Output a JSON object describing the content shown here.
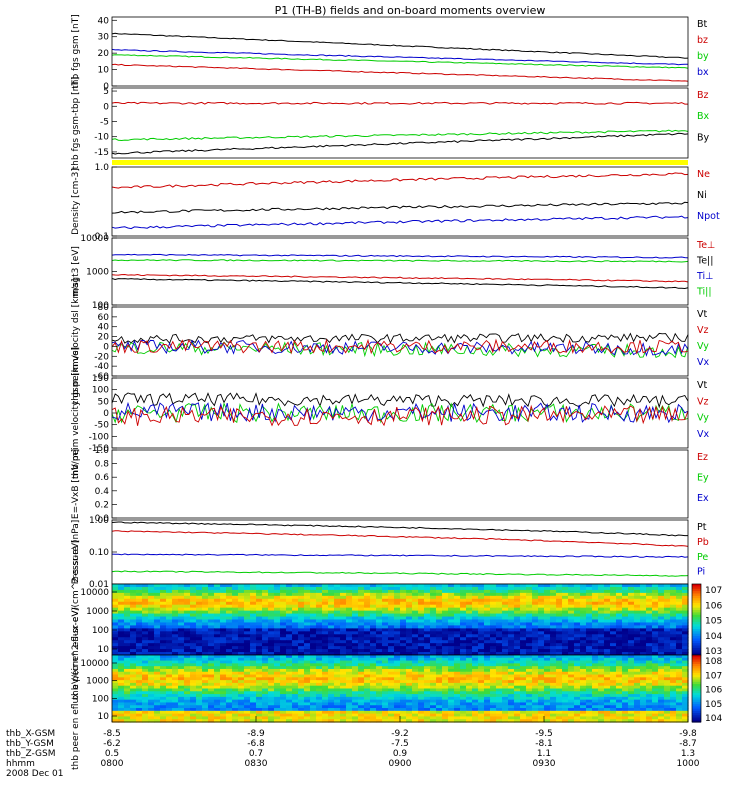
{
  "title": "P1 (TH-B) fields and on-board moments overview",
  "footer": {
    "rows": [
      {
        "label": "thb_X-GSM",
        "values": [
          "-8.5",
          "-8.9",
          "-9.2",
          "-9.5",
          "-9.8"
        ]
      },
      {
        "label": "thb_Y-GSM",
        "values": [
          "-6.2",
          "-6.8",
          "-7.5",
          "-8.1",
          "-8.7"
        ]
      },
      {
        "label": "thb_Z-GSM",
        "values": [
          "0.5",
          "0.7",
          "0.9",
          "1.1",
          "1.3"
        ]
      },
      {
        "label": "hhmm",
        "values": [
          "0800",
          "0830",
          "0900",
          "0930",
          "1000"
        ]
      }
    ],
    "date": "2008 Dec 01"
  },
  "chart_data": [
    {
      "type": "line",
      "ylabel": "thb fgs gsm [nT]",
      "yticks": [
        "40",
        "30",
        "20",
        "10",
        "0"
      ],
      "ylim": [
        0,
        42
      ],
      "legend": [
        {
          "name": "Bt",
          "color": "#000000"
        },
        {
          "name": "bz",
          "color": "#cc0000"
        },
        {
          "name": "by",
          "color": "#00cc00"
        },
        {
          "name": "bx",
          "color": "#0000cc"
        }
      ],
      "series": [
        {
          "name": "Bt",
          "color": "#000000",
          "start": 32,
          "end": 17
        },
        {
          "name": "by",
          "color": "#00cc00",
          "start": 19,
          "end": 11
        },
        {
          "name": "bx",
          "color": "#0000cc",
          "start": 22,
          "end": 13
        },
        {
          "name": "bz",
          "color": "#cc0000",
          "start": 13,
          "end": 3
        }
      ]
    },
    {
      "type": "line",
      "ylabel": "thb fgs gsm-tbp [nT]",
      "yticks": [
        "5",
        "0",
        "-5",
        "-10",
        "-15"
      ],
      "ylim": [
        -17,
        6
      ],
      "legend": [
        {
          "name": "Bz",
          "color": "#cc0000"
        },
        {
          "name": "Bx",
          "color": "#00cc00"
        },
        {
          "name": "By",
          "color": "#000000"
        }
      ],
      "series": [
        {
          "name": "Bz",
          "color": "#cc0000",
          "start": 1,
          "end": 1
        },
        {
          "name": "Bx",
          "color": "#00cc00",
          "start": -11,
          "end": -8
        },
        {
          "name": "By",
          "color": "#000000",
          "start": -15.5,
          "end": -9
        }
      ]
    },
    {
      "type": "line",
      "ylabel": "Density [cm-3]",
      "scale": "log",
      "yticks": [
        "1.0",
        "0.1"
      ],
      "ylim": [
        0.1,
        1.0
      ],
      "legend": [
        {
          "name": "Ne",
          "color": "#cc0000"
        },
        {
          "name": "Ni",
          "color": "#000000"
        },
        {
          "name": "Npot",
          "color": "#0000cc"
        }
      ],
      "series": [
        {
          "name": "Ne",
          "color": "#cc0000",
          "start": 0.5,
          "end": 0.8
        },
        {
          "name": "Ni",
          "color": "#000000",
          "start": 0.22,
          "end": 0.3
        },
        {
          "name": "Npot",
          "color": "#0000cc",
          "start": 0.13,
          "end": 0.19
        }
      ]
    },
    {
      "type": "line",
      "ylabel": "magt3 [eV]",
      "scale": "log",
      "yticks": [
        "10000",
        "1000",
        "100"
      ],
      "ylim": [
        100,
        10000
      ],
      "legend": [
        {
          "name": "Te⊥",
          "color": "#cc0000"
        },
        {
          "name": "Te||",
          "color": "#000000"
        },
        {
          "name": "Ti⊥",
          "color": "#0000cc"
        },
        {
          "name": "Ti||",
          "color": "#00cc00"
        }
      ],
      "series": [
        {
          "name": "Ti⊥",
          "color": "#0000cc",
          "start": 3200,
          "end": 2600
        },
        {
          "name": "Ti||",
          "color": "#00cc00",
          "start": 2200,
          "end": 2000
        },
        {
          "name": "Te⊥",
          "color": "#cc0000",
          "start": 800,
          "end": 500
        },
        {
          "name": "Te||",
          "color": "#000000",
          "start": 600,
          "end": 320
        }
      ]
    },
    {
      "type": "line",
      "ylabel": "thb peim velocity dsl [km/s]",
      "yticks": [
        "80",
        "60",
        "40",
        "20",
        "0",
        "-20",
        "-40",
        "-60"
      ],
      "ylim": [
        -60,
        80
      ],
      "legend": [
        {
          "name": "Vt",
          "color": "#000000"
        },
        {
          "name": "Vz",
          "color": "#cc0000"
        },
        {
          "name": "Vy",
          "color": "#00cc00"
        },
        {
          "name": "Vx",
          "color": "#0000cc"
        }
      ],
      "series": [
        {
          "name": "Vt",
          "color": "#000000",
          "start": 15,
          "end": 18
        },
        {
          "name": "Vy",
          "color": "#00cc00",
          "start": -2,
          "end": -10
        },
        {
          "name": "Vx",
          "color": "#0000cc",
          "start": 0,
          "end": -5
        },
        {
          "name": "Vz",
          "color": "#cc0000",
          "start": 0,
          "end": 0
        }
      ]
    },
    {
      "type": "line",
      "ylabel": "thb peim velocity gsm [km/s]",
      "yticks": [
        "150",
        "100",
        "50",
        "0",
        "-50",
        "-100",
        "-150"
      ],
      "ylim": [
        -150,
        150
      ],
      "legend": [
        {
          "name": "Vt",
          "color": "#000000"
        },
        {
          "name": "Vz",
          "color": "#cc0000"
        },
        {
          "name": "Vy",
          "color": "#00cc00"
        },
        {
          "name": "Vx",
          "color": "#0000cc"
        }
      ],
      "series": [
        {
          "name": "Vt",
          "color": "#000000",
          "start": 60,
          "end": 50
        },
        {
          "name": "Vy",
          "color": "#00cc00",
          "start": 0,
          "end": 0
        },
        {
          "name": "Vx",
          "color": "#0000cc",
          "start": 5,
          "end": 0
        },
        {
          "name": "Vz",
          "color": "#cc0000",
          "start": -15,
          "end": -10
        }
      ]
    },
    {
      "type": "line",
      "ylabel": "E=-VxB [mV/m]",
      "yticks": [
        "1.0",
        "0.8",
        "0.6",
        "0.4",
        "0.2",
        "0.0"
      ],
      "ylim": [
        0,
        1
      ],
      "legend": [
        {
          "name": "Ez",
          "color": "#cc0000"
        },
        {
          "name": "Ey",
          "color": "#00cc00"
        },
        {
          "name": "Ex",
          "color": "#0000cc"
        }
      ],
      "series": []
    },
    {
      "type": "line",
      "ylabel": "Pressure [nPa]",
      "scale": "log",
      "yticks": [
        "1.00",
        "0.10",
        "0.01"
      ],
      "ylim": [
        0.01,
        1.0
      ],
      "legend": [
        {
          "name": "Pt",
          "color": "#000000"
        },
        {
          "name": "Pb",
          "color": "#cc0000"
        },
        {
          "name": "Pe",
          "color": "#00cc00"
        },
        {
          "name": "Pi",
          "color": "#0000cc"
        }
      ],
      "series": [
        {
          "name": "Pt",
          "color": "#000000",
          "start": 0.85,
          "end": 0.32
        },
        {
          "name": "Pb",
          "color": "#cc0000",
          "start": 0.45,
          "end": 0.15
        },
        {
          "name": "Pi",
          "color": "#0000cc",
          "start": 0.085,
          "end": 0.07
        },
        {
          "name": "Pe",
          "color": "#00cc00",
          "start": 0.025,
          "end": 0.018
        }
      ]
    },
    {
      "type": "heatmap",
      "ylabel": "thb peir en eflux eV/(cm^2-s-sr-eV)",
      "scale": "log",
      "yticks": [
        "10000",
        "1000",
        "100",
        "10"
      ],
      "ylim": [
        10,
        20000
      ],
      "colorbar": [
        "10^7",
        "10^6",
        "10^5",
        "10^4",
        "10^3"
      ]
    },
    {
      "type": "heatmap",
      "ylabel": "thb peer en eflux eV/(cm^2-s-sr-eV)",
      "scale": "log",
      "yticks": [
        "10000",
        "1000",
        "100",
        "10"
      ],
      "ylim": [
        10,
        20000
      ],
      "colorbar": [
        "10^8",
        "10^7",
        "10^6",
        "10^5",
        "10^4"
      ]
    }
  ]
}
